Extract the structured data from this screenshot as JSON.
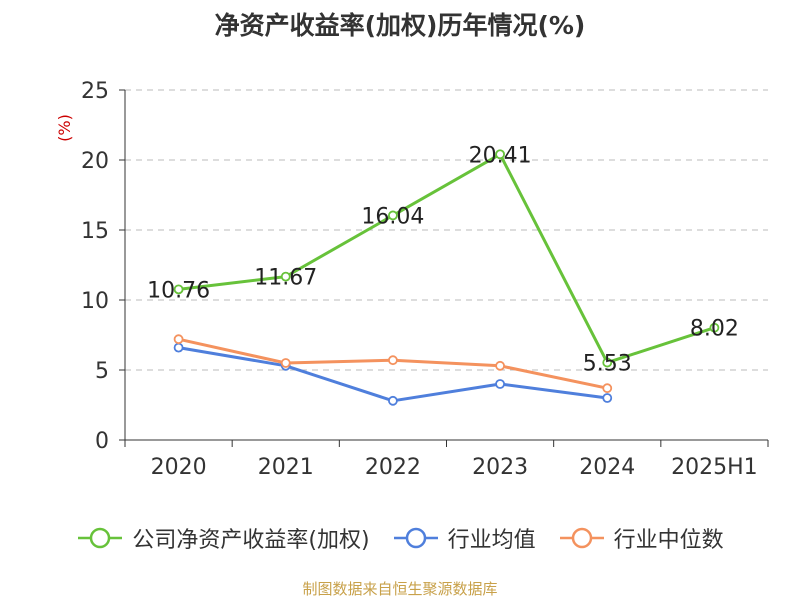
{
  "chart_data": {
    "type": "line",
    "title": "净资产收益率(加权)历年情况(%)",
    "ylabel": "(%)",
    "xlabel": "",
    "categories": [
      "2020",
      "2021",
      "2022",
      "2023",
      "2024",
      "2025H1"
    ],
    "ylim": [
      0,
      25
    ],
    "yticks": [
      0,
      5,
      10,
      15,
      20,
      25
    ],
    "grid": true,
    "legend_position": "bottom",
    "series": [
      {
        "name": "公司净资产收益率(加权)",
        "color": "#67c23a",
        "values": [
          10.76,
          11.67,
          16.04,
          20.41,
          5.53,
          8.02
        ],
        "labels": [
          "10.76",
          "11.67",
          "16.04",
          "20.41",
          "5.53",
          "8.02"
        ]
      },
      {
        "name": "行业均值",
        "color": "#4f7fdc",
        "values": [
          6.6,
          5.3,
          2.8,
          4.0,
          3.0,
          null
        ]
      },
      {
        "name": "行业中位数",
        "color": "#f4925e",
        "values": [
          7.2,
          5.5,
          5.7,
          5.3,
          3.7,
          null
        ]
      }
    ]
  },
  "footer": {
    "source": "制图数据来自恒生聚源数据库"
  }
}
